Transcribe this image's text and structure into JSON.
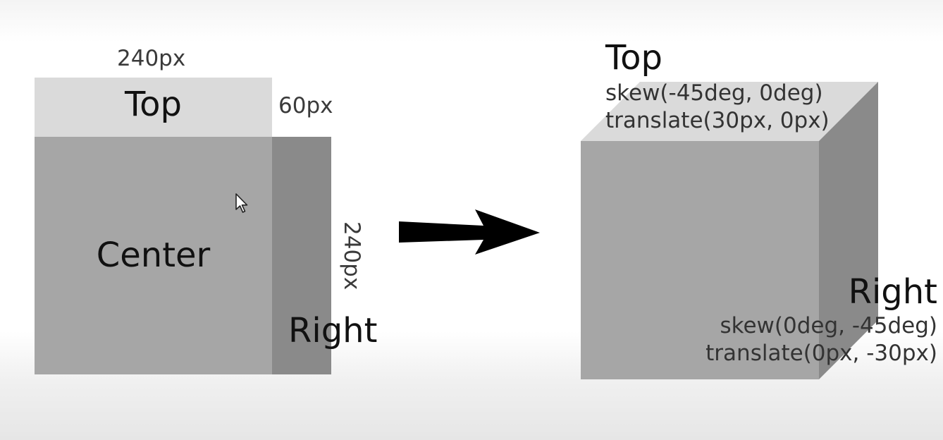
{
  "flat_diagram": {
    "width_label": "240px",
    "depth_label": "60px",
    "height_label": "240px",
    "top_label": "Top",
    "center_label": "Center",
    "right_label": "Right"
  },
  "transformed_cube": {
    "top_label": "Top",
    "top_transform_line1": "skew(-45deg, 0deg)",
    "top_transform_line2": "translate(30px, 0px)",
    "right_label": "Right",
    "right_transform_line1": "skew(0deg, -45deg)",
    "right_transform_line2": "translate(0px, -30px)"
  },
  "icons": {
    "arrow": "arrow-right-icon",
    "cursor": "mouse-pointer-icon"
  },
  "colors": {
    "top_face": "#dadada",
    "center_face": "#a6a6a6",
    "right_face": "#8a8a8a",
    "arrow": "#000000"
  }
}
